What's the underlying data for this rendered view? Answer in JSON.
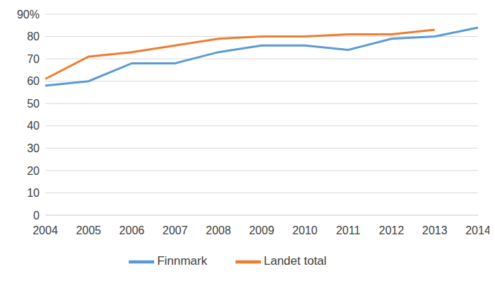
{
  "chart_data": {
    "type": "line",
    "categories": [
      "2004",
      "2005",
      "2006",
      "2007",
      "2008",
      "2009",
      "2010",
      "2011",
      "2012",
      "2013",
      "2014"
    ],
    "series": [
      {
        "name": "Finnmark",
        "color": "#5b9bd5",
        "values": [
          58,
          60,
          68,
          68,
          73,
          76,
          76,
          74,
          79,
          80,
          84
        ]
      },
      {
        "name": "Landet total",
        "color": "#ed7d31",
        "values": [
          61,
          71,
          73,
          76,
          79,
          80,
          80,
          81,
          81,
          83,
          null
        ]
      }
    ],
    "ylim": [
      0,
      90
    ],
    "yticks": [
      0,
      10,
      20,
      30,
      40,
      50,
      60,
      70,
      80,
      {
        "value": 90,
        "label": "90%"
      }
    ],
    "grid": true,
    "legend": "bottom"
  }
}
